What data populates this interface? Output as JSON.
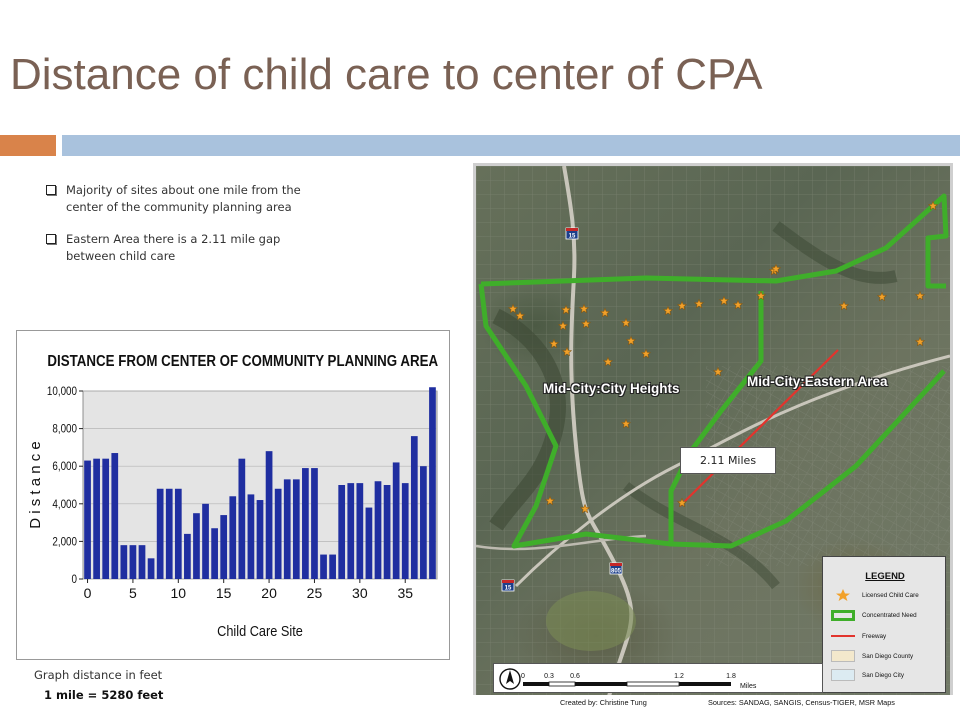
{
  "slide": {
    "title": "Distance of child care to center of CPA",
    "bullets": [
      "Majority of sites about one mile from the center of the community planning area",
      "Eastern Area there is a 2.11 mile gap between child care"
    ],
    "caption_line1": "Graph distance in feet",
    "caption_line2": "1 mile = 5280 feet",
    "colors": {
      "title": "#7a6154",
      "accent_orange": "#d9834a",
      "accent_blue": "#a9c2dd"
    }
  },
  "chart_data": {
    "type": "bar",
    "title": "DISTANCE FROM CENTER OF COMMUNITY PLANNING AREA",
    "xlabel": "Child Care Site",
    "ylabel": "D i s t a n c e",
    "ylim": [
      0,
      10000
    ],
    "yticks": [
      "0",
      "2,000",
      "4,000",
      "6,000",
      "8,000",
      "10,000"
    ],
    "xticks": [
      "0",
      "5",
      "10",
      "15",
      "20",
      "25",
      "30",
      "35"
    ],
    "x": [
      0,
      1,
      2,
      3,
      4,
      5,
      6,
      7,
      8,
      9,
      10,
      11,
      12,
      13,
      14,
      15,
      16,
      17,
      18,
      19,
      20,
      21,
      22,
      23,
      24,
      25,
      26,
      27,
      28,
      29,
      30,
      31,
      32,
      33,
      34,
      35,
      36,
      37,
      38
    ],
    "values": [
      6300,
      6400,
      6400,
      6700,
      1800,
      1800,
      1800,
      1100,
      4800,
      4800,
      4800,
      2400,
      3500,
      4000,
      2700,
      3400,
      4400,
      6400,
      4500,
      4200,
      6800,
      4800,
      5300,
      5300,
      5900,
      5900,
      1300,
      1300,
      5000,
      5100,
      5100,
      3800,
      5200,
      5000,
      6200,
      5100,
      7600,
      6000,
      10200
    ],
    "bar_color": "#1f2ea0",
    "grid": true
  },
  "map": {
    "labels": {
      "city_heights": "Mid-City:City Heights",
      "eastern_area": "Mid-City:Eastern Area",
      "distance": "2.11 Miles"
    },
    "shields": [
      "15",
      "805",
      "15"
    ],
    "legend": {
      "title": "LEGEND",
      "items": [
        "Licensed Child Care",
        "Concentrated Need",
        "Freeway",
        "San Diego County",
        "San Diego City"
      ]
    },
    "scale": {
      "ticks": [
        "0",
        "0.3",
        "0.6",
        "1.2",
        "1.8"
      ],
      "unit": "Miles"
    },
    "credits": {
      "created_by": "Created by: Christine Tung",
      "sources": "Sources: SANDAG, SANGIS, Census-TIGER, MSR Maps"
    },
    "colors": {
      "boundary": "#3fae2a",
      "site": "#f2a12a",
      "freeway": "#e2342d"
    }
  }
}
